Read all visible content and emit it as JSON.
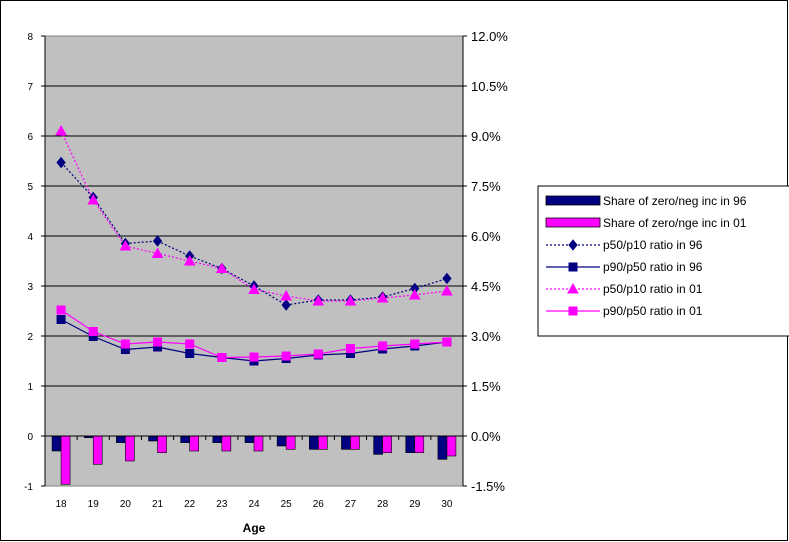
{
  "chart_data": {
    "type": "bar+line",
    "title": "",
    "xlabel": "Age",
    "ylabel": "",
    "y2label": "",
    "categories": [
      "18",
      "19",
      "20",
      "21",
      "22",
      "23",
      "24",
      "25",
      "26",
      "27",
      "28",
      "29",
      "30"
    ],
    "ylim": [
      -1,
      8
    ],
    "yticks": [
      "-1",
      "0",
      "1",
      "2",
      "3",
      "4",
      "5",
      "6",
      "7",
      "8"
    ],
    "y2lim": [
      -1.5,
      12.0
    ],
    "y2ticks": [
      "-1.5%",
      "0.0%",
      "1.5%",
      "3.0%",
      "4.5%",
      "6.0%",
      "7.5%",
      "9.0%",
      "10.5%",
      "12.0%"
    ],
    "grid": true,
    "plot_background": "#c0c0c0",
    "legend_position": "right",
    "series": [
      {
        "name": "Share of zero/neg inc in 96",
        "kind": "bar",
        "axis": "secondary",
        "color": "#000080",
        "values": [
          -0.45,
          -0.05,
          -0.2,
          -0.15,
          -0.2,
          -0.2,
          -0.2,
          -0.3,
          -0.4,
          -0.4,
          -0.55,
          -0.5,
          -0.7
        ]
      },
      {
        "name": "Share of zero/nge inc in 01",
        "kind": "bar",
        "axis": "secondary",
        "color": "#ff00ff",
        "values": [
          -1.45,
          -0.85,
          -0.75,
          -0.5,
          -0.45,
          -0.45,
          -0.45,
          -0.4,
          -0.4,
          -0.4,
          -0.5,
          -0.5,
          -0.6
        ]
      },
      {
        "name": "p50/p10 ratio in 96",
        "kind": "line",
        "axis": "primary",
        "color": "#000080",
        "dash": "dotted",
        "marker": "diamond",
        "values": [
          5.47,
          4.77,
          3.85,
          3.9,
          3.6,
          3.35,
          3.0,
          2.62,
          2.72,
          2.72,
          2.78,
          2.95,
          3.15
        ]
      },
      {
        "name": "p90/p50 ratio in 96",
        "kind": "line",
        "axis": "primary",
        "color": "#000080",
        "dash": "solid",
        "marker": "square",
        "values": [
          2.33,
          1.99,
          1.73,
          1.78,
          1.65,
          1.57,
          1.5,
          1.55,
          1.62,
          1.65,
          1.74,
          1.8,
          1.88
        ]
      },
      {
        "name": "p50/p10 ratio in 01",
        "kind": "line",
        "axis": "primary",
        "color": "#ff00ff",
        "dash": "dotted",
        "marker": "triangle",
        "values": [
          6.1,
          4.72,
          3.8,
          3.65,
          3.5,
          3.35,
          2.93,
          2.8,
          2.7,
          2.7,
          2.76,
          2.82,
          2.9
        ]
      },
      {
        "name": "p90/p50 ratio in 01",
        "kind": "line",
        "axis": "primary",
        "color": "#ff00ff",
        "dash": "solid",
        "marker": "square",
        "values": [
          2.52,
          2.09,
          1.84,
          1.88,
          1.84,
          1.57,
          1.58,
          1.6,
          1.64,
          1.75,
          1.8,
          1.84,
          1.88
        ]
      }
    ]
  }
}
